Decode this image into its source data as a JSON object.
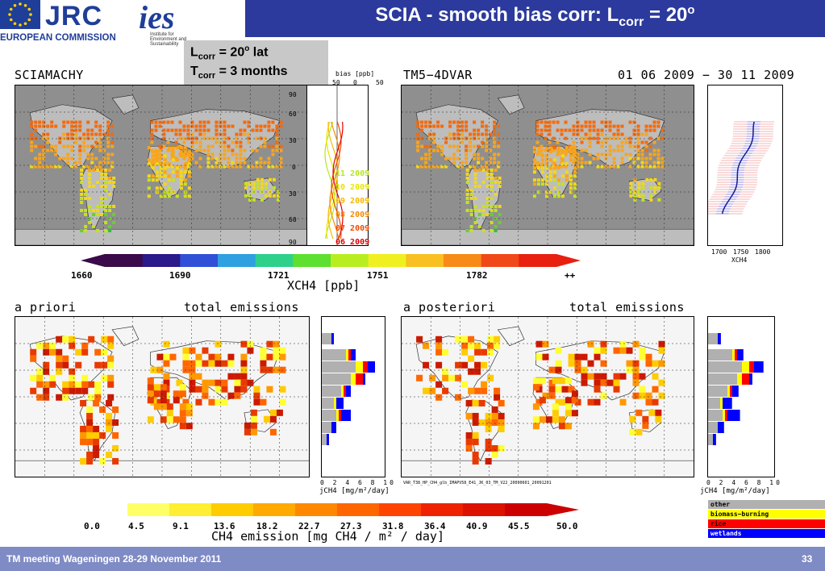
{
  "header": {
    "jrc_logo": "JRC",
    "ec_label": "EUROPEAN COMMISSION",
    "ies_logo": "ies",
    "ies_sub": "Institute for Environment and Sustainability",
    "title_main": "SCIA - smooth bias corr: L",
    "title_sub": "corr",
    "title_tail": " = 20",
    "title_sup": "o"
  },
  "corr_box": {
    "l_main": "L",
    "l_sub": "corr",
    "l_value": " = 20",
    "l_sup": "o",
    "l_unit": " lat",
    "t_main": "T",
    "t_sub": "corr",
    "t_value": " = 3 months"
  },
  "top_panels": {
    "left_label": "SCIAMACHY",
    "right_label": "TM5−4DVAR",
    "date_range": "01 06 2009 − 30 11 2009",
    "bias_axis_label": "bias [ppb]",
    "bias_ticks": [
      "50",
      "0",
      "50"
    ],
    "lat_ticks": [
      "90",
      "60",
      "30",
      "0",
      "30",
      "60",
      "90"
    ],
    "month_legend": [
      {
        "label": "11 2009",
        "color": "#b5e61d"
      },
      {
        "label": "10 2009",
        "color": "#e6e600"
      },
      {
        "label": "09 2009",
        "color": "#f5b800"
      },
      {
        "label": "08 2009",
        "color": "#f58a00"
      },
      {
        "label": "07 2009",
        "color": "#f04a00"
      },
      {
        "label": "06 2009",
        "color": "#e00000"
      }
    ],
    "xch4_ticks": [
      "1700",
      "1750",
      "1800"
    ],
    "xch4_axis": "XCH4"
  },
  "top_colorbar": {
    "ticks": [
      "1660",
      "1690",
      "1721",
      "1751",
      "1782",
      "++"
    ],
    "title": "XCH4 [ppb]"
  },
  "bottom_panels": {
    "left_label": "a priori",
    "left_title": "total emissions",
    "right_label": "a posteriori",
    "right_title": "total emissions",
    "side_ticks": [
      "0",
      "2",
      "4",
      "6",
      "8",
      "10"
    ],
    "side_axis": "jCH4 [mg/m²/day]",
    "run_id": "VAR_T38_HP_CH4_glb_IMAPV58_E41_JK_03_TM_V22_20090601_20091201"
  },
  "bottom_colorbar": {
    "ticks": [
      "0.0",
      "4.5",
      "9.1",
      "13.6",
      "18.2",
      "22.7",
      "27.3",
      "31.8",
      "36.4",
      "40.9",
      "45.5",
      "50.0"
    ],
    "title": "CH4 emission [mg CH4 / m² / day]"
  },
  "legend": [
    {
      "label": "other",
      "color": "#b0b0b0",
      "text_color": "#000"
    },
    {
      "label": "biomass−burning",
      "color": "#ffff00",
      "text_color": "#000"
    },
    {
      "label": "rice",
      "color": "#ff0000",
      "text_color": "#000"
    },
    {
      "label": "wetlands",
      "color": "#0000ff",
      "text_color": "#fff"
    }
  ],
  "footer": {
    "text": "TM meeting Wageningen 28-29 November 2011",
    "page": "33"
  }
}
